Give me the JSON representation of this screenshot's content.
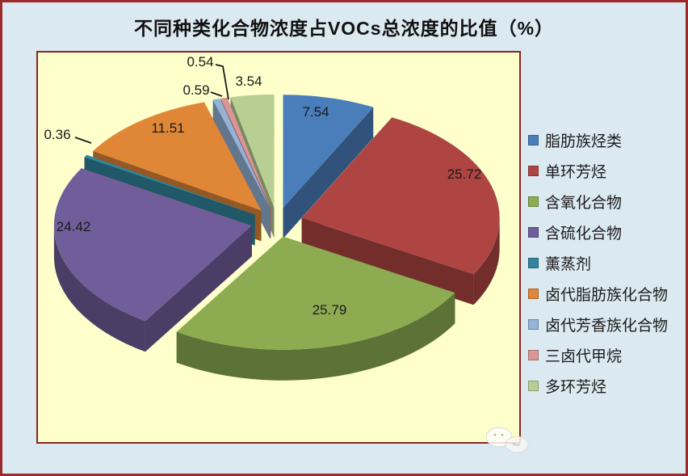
{
  "chart_data": {
    "type": "pie",
    "style": "3d-exploded",
    "title": "不同种类化合物浓度占VOCs总浓度的比值（%）",
    "unit": "%",
    "direction": "clockwise",
    "start_angle_deg": 0,
    "legend_position": "right",
    "categories": [
      "脂肪族烃类",
      "单环芳烃",
      "含氧化合物",
      "含硫化合物",
      "薰蒸剂",
      "卤代脂肪族化合物",
      "卤代芳香族化合物",
      "三卤代甲烷",
      "多环芳烃"
    ],
    "values": [
      7.54,
      25.72,
      25.79,
      24.42,
      0.36,
      11.51,
      0.59,
      0.54,
      3.54
    ],
    "data_labels": [
      "7.54",
      "25.72",
      "25.79",
      "24.42",
      "0.36",
      "11.51",
      "0.59",
      "0.54",
      "3.54"
    ],
    "colors": [
      "#4a7ebb",
      "#ae4543",
      "#8dac52",
      "#715d99",
      "#31859c",
      "#e08637",
      "#95b3d7",
      "#d99694",
      "#b8cf94"
    ]
  },
  "style": {
    "background_color": "#dbe9f1",
    "plot_background_color": "#ffffcc",
    "outer_border_color": "#9b2b2b",
    "plot_border_color": "#8b2424",
    "label_text_color": "#1a1a1a"
  },
  "decorations": {
    "watermark_icon": "cloud-icon"
  }
}
